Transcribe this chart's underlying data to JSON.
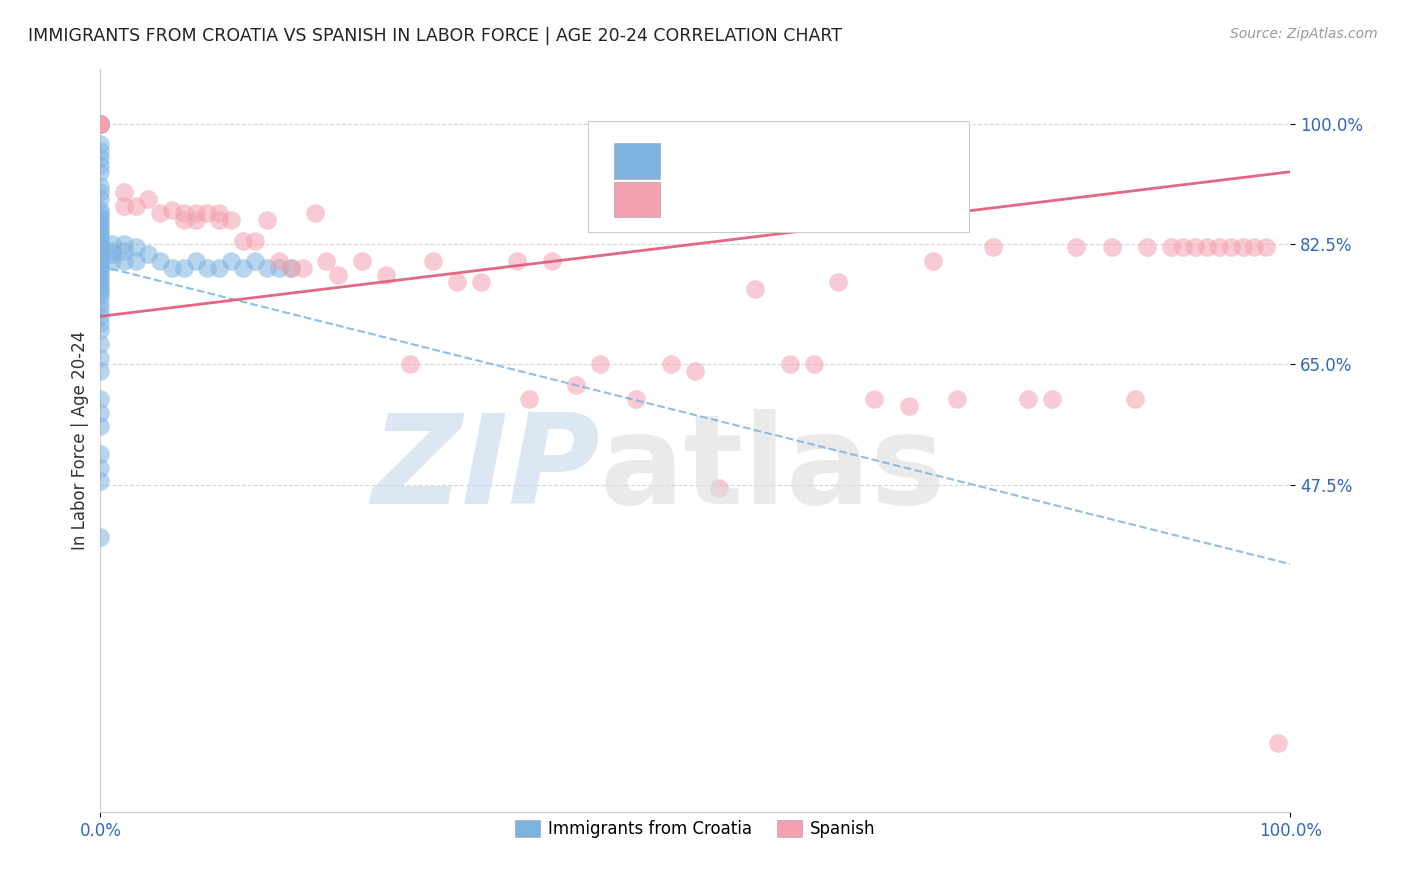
{
  "title": "IMMIGRANTS FROM CROATIA VS SPANISH IN LABOR FORCE | AGE 20-24 CORRELATION CHART",
  "source": "Source: ZipAtlas.com",
  "ylabel": "In Labor Force | Age 20-24",
  "color_blue": "#7EB3E0",
  "color_pink": "#F4A0B0",
  "color_blue_line": "#7EB3E0",
  "color_pink_line": "#E05878",
  "xlim": [
    0.0,
    1.0
  ],
  "ylim": [
    0.0,
    1.08
  ],
  "yticks": [
    0.475,
    0.65,
    0.825,
    1.0
  ],
  "ytick_labels": [
    "47.5%",
    "65.0%",
    "82.5%",
    "100.0%"
  ],
  "xticks": [
    0.0,
    1.0
  ],
  "xtick_labels": [
    "0.0%",
    "100.0%"
  ],
  "blue_x": [
    0.0,
    0.0,
    0.0,
    0.0,
    0.0,
    0.0,
    0.0,
    0.0,
    0.0,
    0.0,
    0.0,
    0.0,
    0.0,
    0.0,
    0.0,
    0.0,
    0.0,
    0.0,
    0.0,
    0.0,
    0.0,
    0.0,
    0.0,
    0.0,
    0.0,
    0.0,
    0.0,
    0.0,
    0.0,
    0.0,
    0.0,
    0.0,
    0.0,
    0.0,
    0.0,
    0.0,
    0.0,
    0.0,
    0.0,
    0.0,
    0.0,
    0.0,
    0.0,
    0.0,
    0.0,
    0.0,
    0.0,
    0.0,
    0.0,
    0.0,
    0.0,
    0.0,
    0.01,
    0.01,
    0.01,
    0.01,
    0.02,
    0.02,
    0.02,
    0.03,
    0.03,
    0.04,
    0.05,
    0.06,
    0.07,
    0.08,
    0.09,
    0.1,
    0.11,
    0.12,
    0.13,
    0.14,
    0.15,
    0.16
  ],
  "blue_y": [
    1.0,
    1.0,
    1.0,
    0.97,
    0.96,
    0.95,
    0.94,
    0.93,
    0.91,
    0.9,
    0.89,
    0.875,
    0.87,
    0.865,
    0.86,
    0.855,
    0.85,
    0.845,
    0.84,
    0.835,
    0.83,
    0.825,
    0.82,
    0.815,
    0.81,
    0.805,
    0.8,
    0.795,
    0.79,
    0.785,
    0.78,
    0.775,
    0.77,
    0.765,
    0.76,
    0.755,
    0.75,
    0.74,
    0.73,
    0.72,
    0.71,
    0.7,
    0.68,
    0.66,
    0.64,
    0.6,
    0.58,
    0.56,
    0.52,
    0.5,
    0.48,
    0.4,
    0.825,
    0.815,
    0.81,
    0.8,
    0.825,
    0.815,
    0.8,
    0.82,
    0.8,
    0.81,
    0.8,
    0.79,
    0.79,
    0.8,
    0.79,
    0.79,
    0.8,
    0.79,
    0.8,
    0.79,
    0.79,
    0.79
  ],
  "pink_x": [
    0.0,
    0.0,
    0.0,
    0.0,
    0.0,
    0.0,
    0.0,
    0.0,
    0.02,
    0.02,
    0.03,
    0.04,
    0.05,
    0.06,
    0.07,
    0.07,
    0.08,
    0.08,
    0.09,
    0.1,
    0.1,
    0.11,
    0.12,
    0.13,
    0.14,
    0.15,
    0.16,
    0.17,
    0.18,
    0.19,
    0.2,
    0.22,
    0.24,
    0.26,
    0.28,
    0.3,
    0.32,
    0.35,
    0.36,
    0.38,
    0.4,
    0.42,
    0.45,
    0.48,
    0.5,
    0.52,
    0.55,
    0.58,
    0.6,
    0.62,
    0.65,
    0.68,
    0.7,
    0.72,
    0.75,
    0.78,
    0.8,
    0.82,
    0.85,
    0.87,
    0.88,
    0.9,
    0.91,
    0.92,
    0.93,
    0.94,
    0.95,
    0.96,
    0.97,
    0.98,
    0.99
  ],
  "pink_y": [
    1.0,
    1.0,
    1.0,
    1.0,
    1.0,
    1.0,
    1.0,
    1.0,
    0.9,
    0.88,
    0.88,
    0.89,
    0.87,
    0.875,
    0.87,
    0.86,
    0.87,
    0.86,
    0.87,
    0.87,
    0.86,
    0.86,
    0.83,
    0.83,
    0.86,
    0.8,
    0.79,
    0.79,
    0.87,
    0.8,
    0.78,
    0.8,
    0.78,
    0.65,
    0.8,
    0.77,
    0.77,
    0.8,
    0.6,
    0.8,
    0.62,
    0.65,
    0.6,
    0.65,
    0.64,
    0.47,
    0.76,
    0.65,
    0.65,
    0.77,
    0.6,
    0.59,
    0.8,
    0.6,
    0.82,
    0.6,
    0.6,
    0.82,
    0.82,
    0.6,
    0.82,
    0.82,
    0.82,
    0.82,
    0.82,
    0.82,
    0.82,
    0.82,
    0.82,
    0.82,
    0.1
  ],
  "blue_line_x0": 0.0,
  "blue_line_x1": 1.0,
  "blue_line_y0": 0.793,
  "blue_line_y1": 0.36,
  "pink_line_x0": 0.0,
  "pink_line_x1": 1.0,
  "pink_line_y0": 0.72,
  "pink_line_y1": 0.93
}
